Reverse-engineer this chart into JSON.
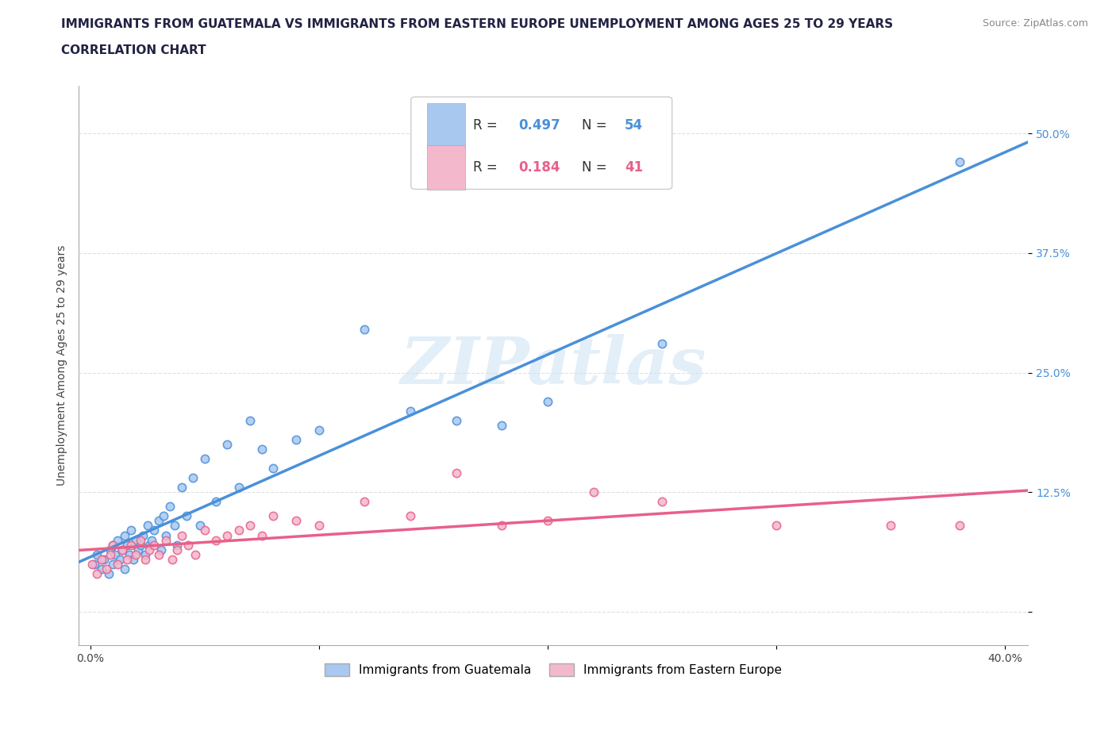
{
  "title_line1": "IMMIGRANTS FROM GUATEMALA VS IMMIGRANTS FROM EASTERN EUROPE UNEMPLOYMENT AMONG AGES 25 TO 29 YEARS",
  "title_line2": "CORRELATION CHART",
  "source_text": "Source: ZipAtlas.com",
  "ylabel": "Unemployment Among Ages 25 to 29 years",
  "watermark": "ZIPatlas",
  "xlim": [
    -0.005,
    0.41
  ],
  "ylim": [
    -0.035,
    0.55
  ],
  "xticks": [
    0.0,
    0.1,
    0.2,
    0.3,
    0.4
  ],
  "xticklabels": [
    "0.0%",
    "",
    "",
    "",
    "40.0%"
  ],
  "ytick_positions": [
    0.0,
    0.125,
    0.25,
    0.375,
    0.5
  ],
  "ytick_labels": [
    "",
    "12.5%",
    "25.0%",
    "37.5%",
    "50.0%"
  ],
  "legend_r1": "0.497",
  "legend_n1": "54",
  "legend_r2": "0.184",
  "legend_n2": "41",
  "color_guatemala": "#a8c8f0",
  "color_eastern_europe": "#f4b8cc",
  "color_line_guatemala": "#4a90d9",
  "color_line_eastern_europe": "#e8608a",
  "label_guatemala": "Immigrants from Guatemala",
  "label_eastern_europe": "Immigrants from Eastern Europe",
  "guatemala_x": [
    0.002,
    0.003,
    0.005,
    0.006,
    0.008,
    0.009,
    0.01,
    0.01,
    0.011,
    0.012,
    0.013,
    0.014,
    0.015,
    0.015,
    0.016,
    0.017,
    0.018,
    0.019,
    0.02,
    0.021,
    0.022,
    0.023,
    0.024,
    0.025,
    0.026,
    0.027,
    0.028,
    0.03,
    0.031,
    0.032,
    0.033,
    0.035,
    0.037,
    0.038,
    0.04,
    0.042,
    0.045,
    0.048,
    0.05,
    0.055,
    0.06,
    0.065,
    0.07,
    0.075,
    0.08,
    0.09,
    0.1,
    0.12,
    0.14,
    0.16,
    0.18,
    0.2,
    0.25,
    0.38
  ],
  "guatemala_y": [
    0.05,
    0.06,
    0.045,
    0.055,
    0.04,
    0.065,
    0.07,
    0.05,
    0.06,
    0.075,
    0.055,
    0.065,
    0.08,
    0.045,
    0.07,
    0.06,
    0.085,
    0.055,
    0.075,
    0.065,
    0.07,
    0.08,
    0.06,
    0.09,
    0.07,
    0.075,
    0.085,
    0.095,
    0.065,
    0.1,
    0.08,
    0.11,
    0.09,
    0.07,
    0.13,
    0.1,
    0.14,
    0.09,
    0.16,
    0.115,
    0.175,
    0.13,
    0.2,
    0.17,
    0.15,
    0.18,
    0.19,
    0.295,
    0.21,
    0.2,
    0.195,
    0.22,
    0.28,
    0.47
  ],
  "eastern_europe_x": [
    0.001,
    0.003,
    0.005,
    0.007,
    0.009,
    0.01,
    0.012,
    0.014,
    0.016,
    0.018,
    0.02,
    0.022,
    0.024,
    0.026,
    0.028,
    0.03,
    0.033,
    0.036,
    0.038,
    0.04,
    0.043,
    0.046,
    0.05,
    0.055,
    0.06,
    0.065,
    0.07,
    0.075,
    0.08,
    0.09,
    0.1,
    0.12,
    0.14,
    0.16,
    0.18,
    0.2,
    0.22,
    0.25,
    0.3,
    0.35,
    0.38
  ],
  "eastern_europe_y": [
    0.05,
    0.04,
    0.055,
    0.045,
    0.06,
    0.07,
    0.05,
    0.065,
    0.055,
    0.07,
    0.06,
    0.075,
    0.055,
    0.065,
    0.07,
    0.06,
    0.075,
    0.055,
    0.065,
    0.08,
    0.07,
    0.06,
    0.085,
    0.075,
    0.08,
    0.085,
    0.09,
    0.08,
    0.1,
    0.095,
    0.09,
    0.115,
    0.1,
    0.145,
    0.09,
    0.095,
    0.125,
    0.115,
    0.09,
    0.09,
    0.09
  ],
  "title_fontsize": 11,
  "axis_fontsize": 10,
  "tick_fontsize": 10,
  "source_fontsize": 9,
  "legend_fontsize": 12,
  "scatter_size": 55,
  "scatter_linewidth": 1.2,
  "background_color": "#ffffff",
  "grid_color": "#e0e0e0"
}
